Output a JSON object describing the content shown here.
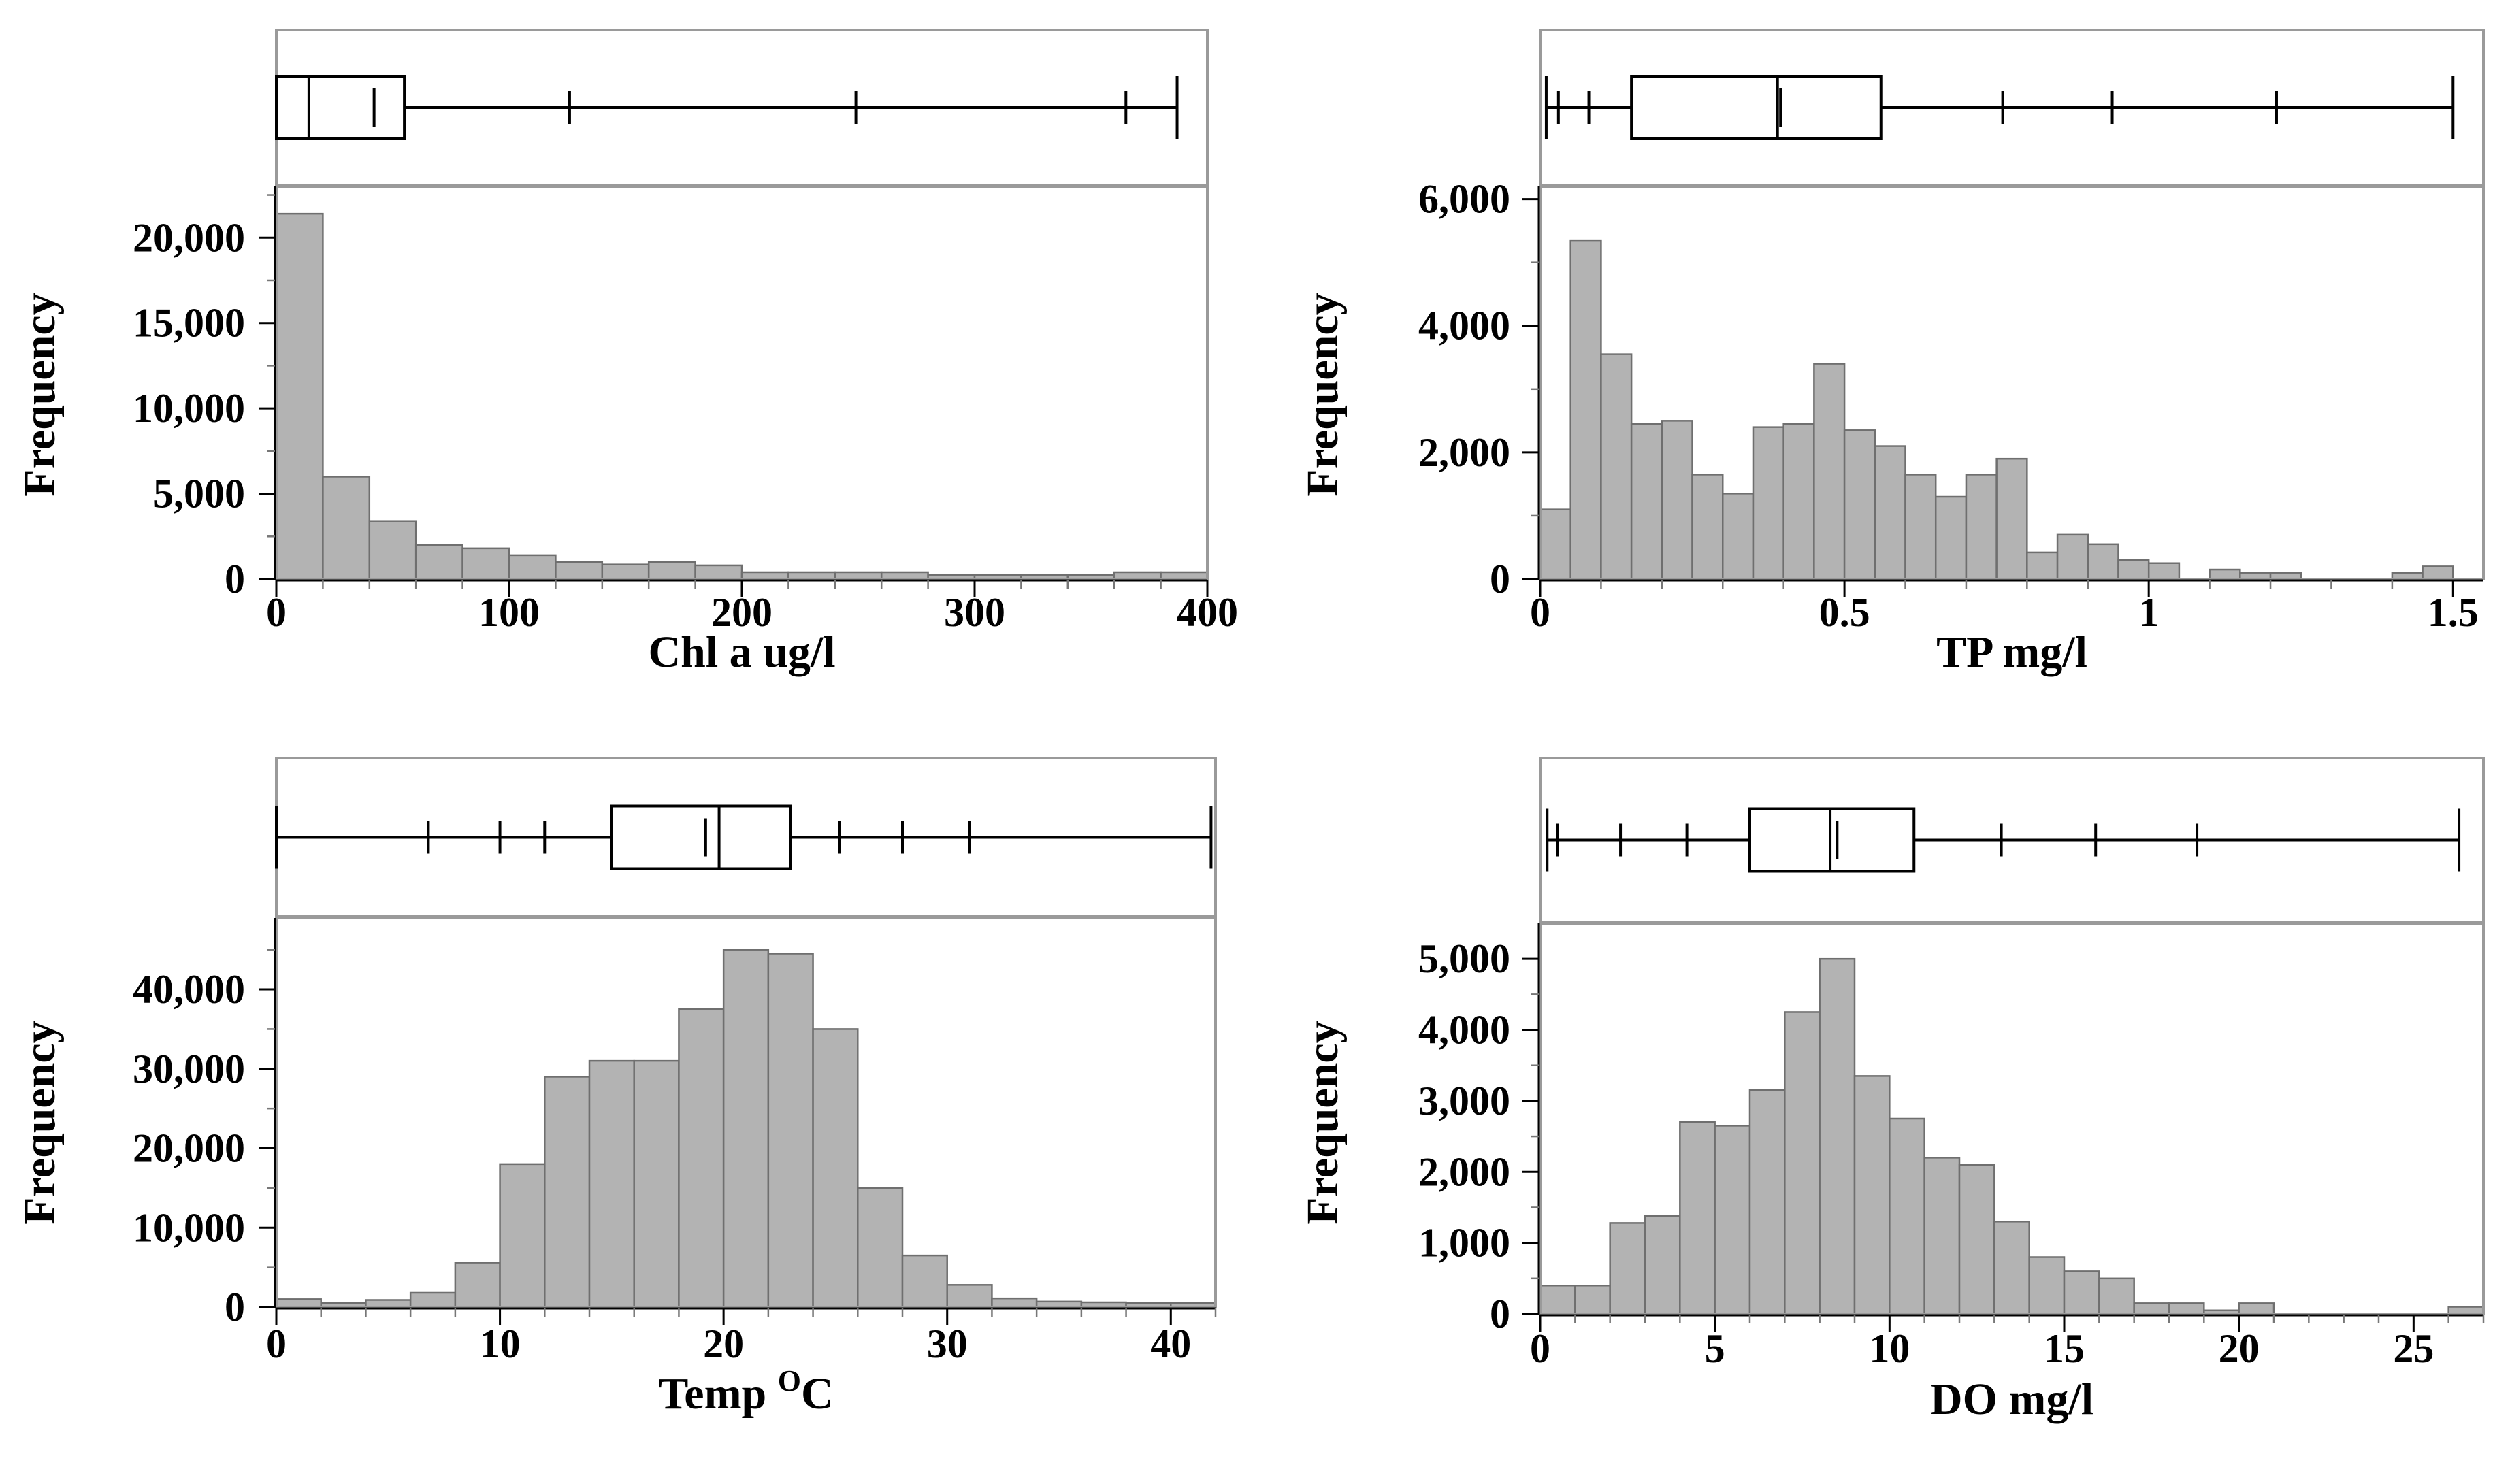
{
  "chart_data": [
    {
      "type": "bar",
      "subtype": "histogram_with_boxplot",
      "xlabel": "Chl a ug/l",
      "ylabel": "Frequency",
      "xlim": [
        0,
        400
      ],
      "ylim": [
        0,
        23000
      ],
      "xticks": [
        0,
        100,
        200,
        300,
        400
      ],
      "xtick_labels": [
        "0",
        "100",
        "200",
        "300",
        "400"
      ],
      "yticks": [
        0,
        5000,
        10000,
        15000,
        20000
      ],
      "ytick_labels": [
        "0",
        "5,000",
        "10,000",
        "15,000",
        "20,000"
      ],
      "bin_width": 20,
      "bin_start": 0,
      "values": [
        21400,
        6000,
        3400,
        2000,
        1800,
        1400,
        1000,
        850,
        1000,
        800,
        400,
        400,
        400,
        400,
        250,
        250,
        250,
        250,
        400,
        400
      ],
      "boxplot": {
        "quantile_marks": [
          0,
          14,
          55,
          126,
          249,
          365,
          387
        ],
        "box": [
          0,
          55
        ],
        "median": 14,
        "mean": 42,
        "whisker": [
          0,
          387
        ]
      }
    },
    {
      "type": "bar",
      "subtype": "histogram_with_boxplot",
      "xlabel": "TP mg/l",
      "ylabel": "Frequency",
      "xlim": [
        0,
        1.55
      ],
      "ylim": [
        0,
        6200
      ],
      "xticks": [
        0,
        0.5,
        1,
        1.5
      ],
      "xtick_labels": [
        "0",
        "0.5",
        "1",
        "1.5"
      ],
      "yticks": [
        0,
        2000,
        4000,
        6000
      ],
      "ytick_labels": [
        "0",
        "2,000",
        "4,000",
        "6,000"
      ],
      "bin_width": 0.05,
      "bin_start": 0,
      "values": [
        1100,
        5350,
        3550,
        2450,
        2500,
        1650,
        1350,
        2400,
        2450,
        3400,
        2350,
        2100,
        1650,
        1300,
        1650,
        1900,
        420,
        700,
        550,
        300,
        250,
        0,
        150,
        100,
        100,
        0,
        0,
        0,
        100,
        200
      ],
      "boxplot": {
        "quantile_marks": [
          0.01,
          0.03,
          0.08,
          0.15,
          0.39,
          0.56,
          0.76,
          0.94,
          1.21,
          1.5
        ],
        "box": [
          0.15,
          0.56
        ],
        "median": 0.39,
        "mean": 0.395,
        "whisker": [
          0.01,
          1.5
        ]
      }
    },
    {
      "type": "bar",
      "subtype": "histogram_with_boxplot",
      "xlabel": "Temp",
      "xlabel_superscript": "O",
      "xlabel_suffix": "C",
      "ylabel": "Frequency",
      "xlim": [
        0,
        42
      ],
      "ylim": [
        0,
        49000
      ],
      "xticks": [
        0,
        10,
        20,
        30,
        40
      ],
      "xtick_labels": [
        "0",
        "10",
        "20",
        "30",
        "40"
      ],
      "yticks": [
        0,
        10000,
        20000,
        30000,
        40000
      ],
      "ytick_labels": [
        "0",
        "10,000",
        "20,000",
        "30,000",
        "40,000"
      ],
      "bin_width": 2,
      "bin_start": 0,
      "values": [
        1000,
        500,
        900,
        1800,
        5600,
        18000,
        29000,
        31000,
        31000,
        37500,
        45000,
        44500,
        35000,
        15000,
        6500,
        2800,
        1100,
        700,
        600,
        500,
        500
      ],
      "boxplot": {
        "quantile_marks": [
          0,
          6.8,
          10,
          12,
          15,
          19.8,
          23,
          25.2,
          28,
          31,
          41.8
        ],
        "box": [
          15,
          23
        ],
        "median": 19.8,
        "mean": 19.2,
        "whisker": [
          0,
          41.8
        ]
      }
    },
    {
      "type": "bar",
      "subtype": "histogram_with_boxplot",
      "xlabel": "DO mg/l",
      "ylabel": "Frequency",
      "xlim": [
        0,
        27
      ],
      "ylim": [
        0,
        5500
      ],
      "xticks": [
        0,
        5,
        10,
        15,
        20,
        25
      ],
      "xtick_labels": [
        "0",
        "5",
        "10",
        "15",
        "20",
        "25"
      ],
      "yticks": [
        0,
        1000,
        2000,
        3000,
        4000,
        5000
      ],
      "ytick_labels": [
        "0",
        "1,000",
        "2,000",
        "3,000",
        "4,000",
        "5,000"
      ],
      "bin_width": 1,
      "bin_start": 0,
      "values": [
        400,
        400,
        1280,
        1380,
        2700,
        2650,
        3150,
        4250,
        5000,
        3350,
        2750,
        2200,
        2100,
        1300,
        800,
        600,
        500,
        150,
        150,
        50,
        150,
        0,
        0,
        0,
        0,
        0,
        100
      ],
      "boxplot": {
        "quantile_marks": [
          0.2,
          0.5,
          2.3,
          4.2,
          6,
          8.3,
          10.7,
          13.2,
          15.9,
          18.8,
          26.3
        ],
        "box": [
          6,
          10.7
        ],
        "median": 8.3,
        "mean": 8.5,
        "whisker": [
          0.2,
          26.3
        ]
      }
    }
  ]
}
